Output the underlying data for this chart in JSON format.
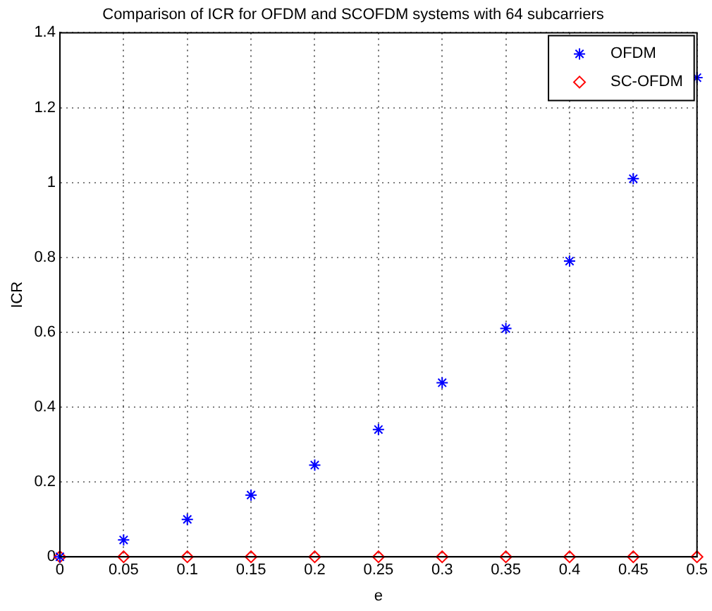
{
  "chart_data": {
    "type": "scatter",
    "title": "Comparison of ICR for OFDM and SCOFDM systems with 64 subcarriers",
    "xlabel": "e",
    "ylabel": "ICR",
    "x": [
      0,
      0.05,
      0.1,
      0.15,
      0.2,
      0.25,
      0.3,
      0.35,
      0.4,
      0.45,
      0.5
    ],
    "series": [
      {
        "name": "OFDM",
        "color": "#0000ff",
        "marker": "cross",
        "values": [
          0,
          0.045,
          0.1,
          0.165,
          0.245,
          0.34,
          0.465,
          0.61,
          0.79,
          1.01,
          1.28
        ]
      },
      {
        "name": "SC-OFDM",
        "color": "#ff0000",
        "marker": "diamond",
        "values": [
          0,
          0,
          0,
          0,
          0,
          0,
          0,
          0,
          0,
          0,
          0
        ]
      }
    ],
    "xlim": [
      0,
      0.5
    ],
    "xticks": [
      0,
      0.05,
      0.1,
      0.15,
      0.2,
      0.25,
      0.3,
      0.35,
      0.4,
      0.45,
      0.5
    ],
    "ylim": [
      0,
      1.4
    ],
    "yticks": [
      0,
      0.2,
      0.4,
      0.6,
      0.8,
      1,
      1.2,
      1.4
    ],
    "grid": true,
    "legend": "top right"
  }
}
